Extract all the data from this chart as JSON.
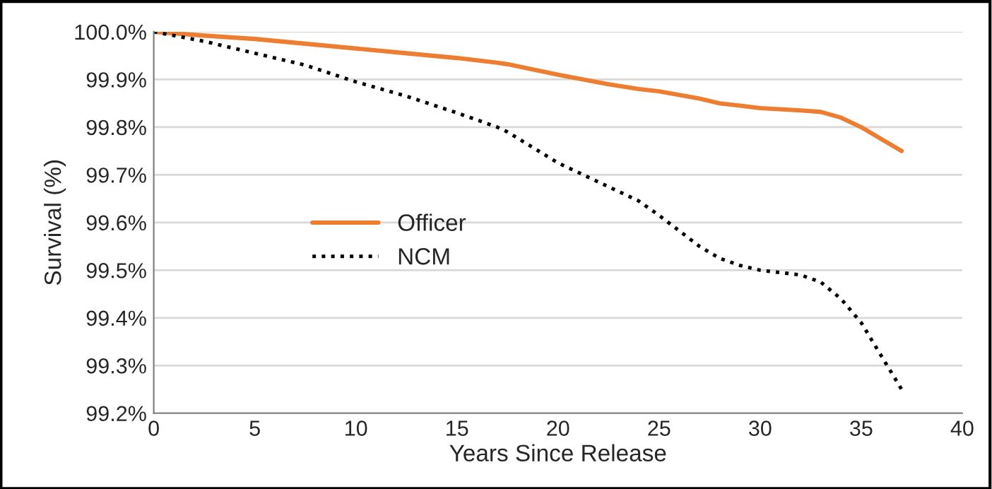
{
  "chart_data": {
    "type": "line",
    "xlabel": "Years Since Release",
    "ylabel": "Survival (%)",
    "x": [
      0,
      2.5,
      5,
      7.5,
      10,
      12.5,
      15,
      17,
      17.5,
      20,
      22.5,
      24,
      25,
      27,
      28,
      29,
      30,
      32,
      33,
      34,
      35,
      36,
      37
    ],
    "series": [
      {
        "name": "Officer",
        "color": "#ed7d31",
        "line_style": "solid",
        "values": [
          100.0,
          99.992,
          99.985,
          99.975,
          99.965,
          99.955,
          99.945,
          99.935,
          99.932,
          99.91,
          99.89,
          99.88,
          99.875,
          99.86,
          99.85,
          99.845,
          99.84,
          99.835,
          99.832,
          99.82,
          99.8,
          99.775,
          99.75
        ]
      },
      {
        "name": "NCM",
        "color": "#000000",
        "line_style": "dotted",
        "values": [
          100.0,
          99.98,
          99.955,
          99.93,
          99.895,
          99.865,
          99.83,
          99.8,
          99.79,
          99.725,
          99.675,
          99.645,
          99.615,
          99.55,
          99.525,
          99.51,
          99.5,
          99.49,
          99.475,
          99.44,
          99.39,
          99.32,
          99.25
        ]
      }
    ],
    "xlim": [
      0,
      40
    ],
    "xticks": [
      0,
      5,
      10,
      15,
      20,
      25,
      30,
      35,
      40
    ],
    "ylim": [
      99.2,
      100.0
    ],
    "yticks": [
      {
        "value": 99.2,
        "label": "99.2%"
      },
      {
        "value": 99.3,
        "label": "99.3%"
      },
      {
        "value": 99.4,
        "label": "99.4%"
      },
      {
        "value": 99.5,
        "label": "99.5%"
      },
      {
        "value": 99.6,
        "label": "99.6%"
      },
      {
        "value": 99.7,
        "label": "99.7%"
      },
      {
        "value": 99.8,
        "label": "99.8%"
      },
      {
        "value": 99.9,
        "label": "99.9%"
      },
      {
        "value": 100.0,
        "label": "100.0%"
      }
    ],
    "grid": "y",
    "legend": "left"
  }
}
